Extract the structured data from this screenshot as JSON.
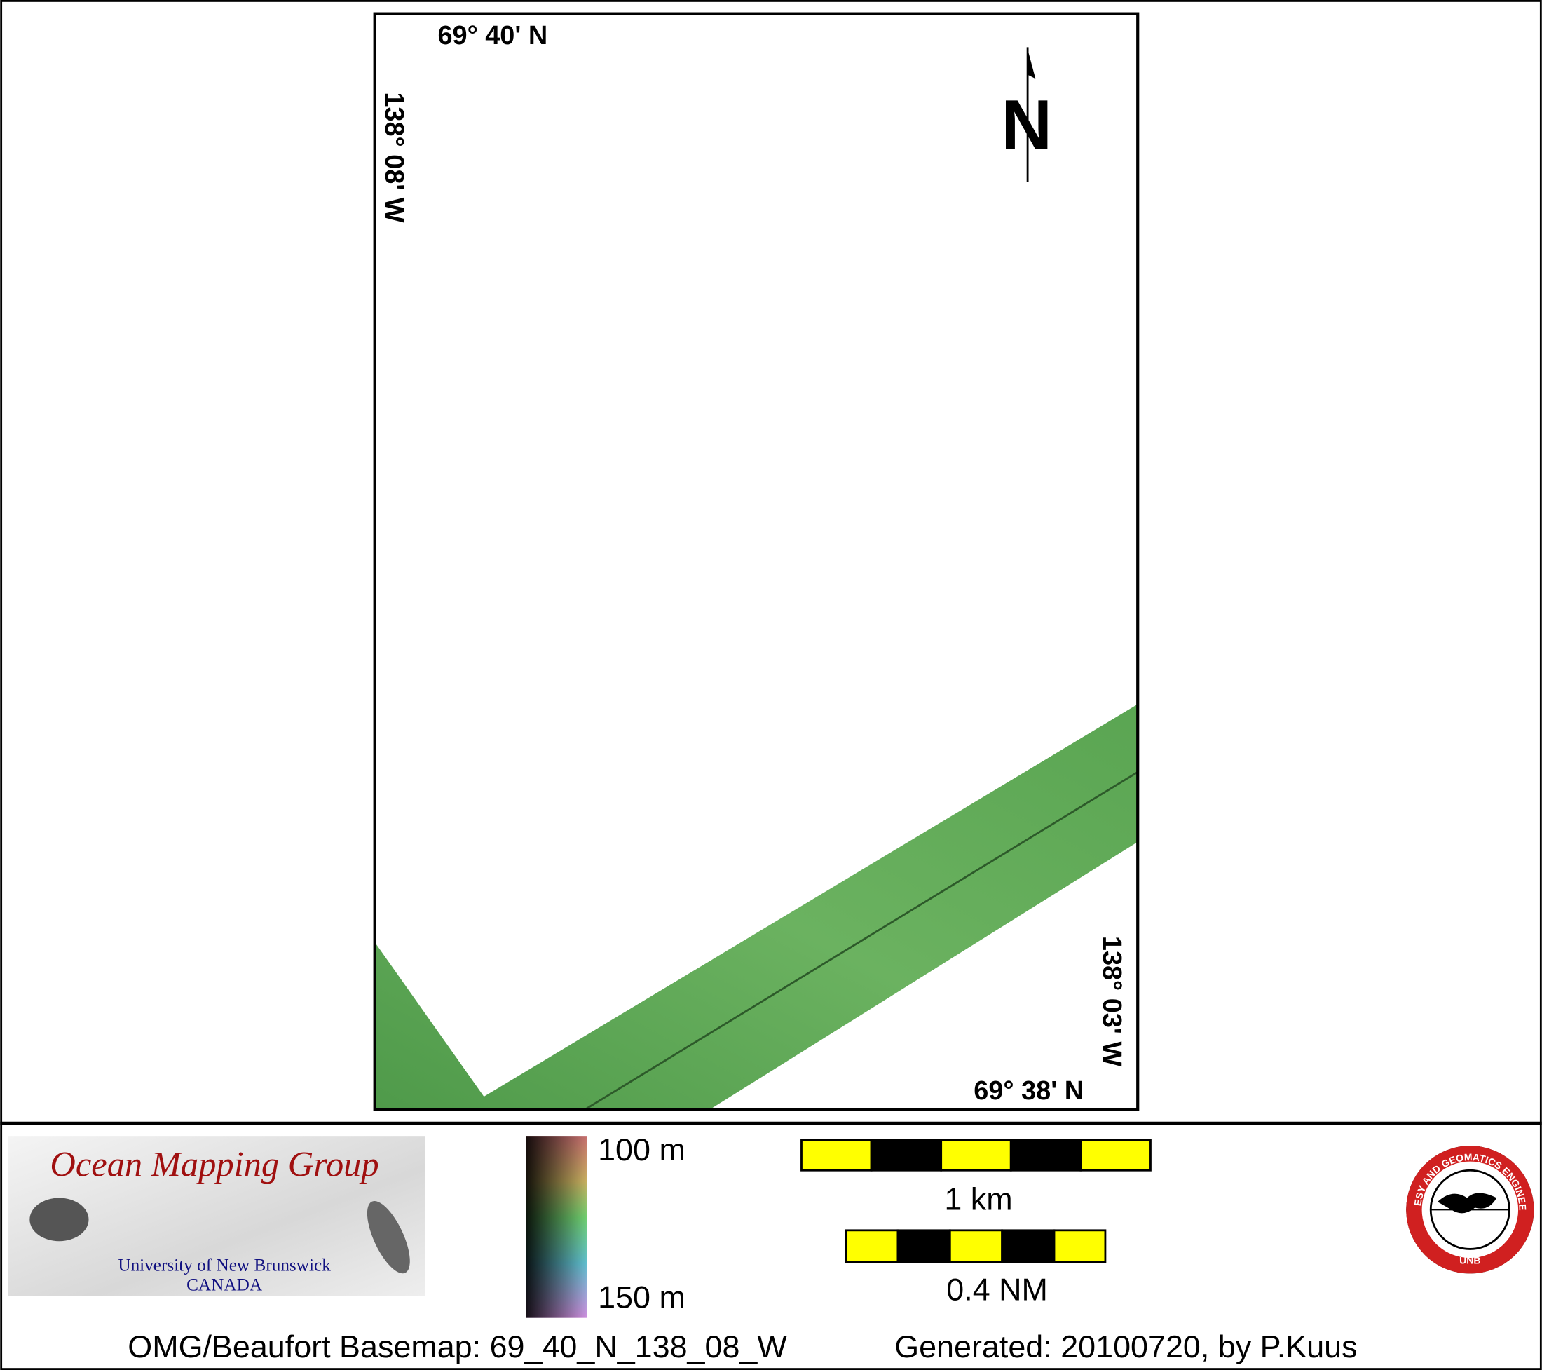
{
  "map": {
    "frame_labels": {
      "top_lat": "69° 40' N",
      "left_lon": "138° 08' W",
      "right_lon": "138° 03' W",
      "bottom_lat": "69° 38' N"
    },
    "north_arrow": "N"
  },
  "legend": {
    "logo": {
      "title": "Ocean Mapping Group",
      "university": "University of New Brunswick",
      "country": "CANADA"
    },
    "depth_scale": {
      "top": "100 m",
      "bottom": "150 m"
    },
    "scale_bars": [
      "1 km",
      "0.4 NM"
    ],
    "seal": {
      "ring": "GEODESY AND GEOMATICS ENGINEERING",
      "bottom": "UNB"
    }
  },
  "footer": {
    "basemap": "OMG/Beaufort Basemap: 69_40_N_138_08_W",
    "generated": "Generated: 20100720, by P.Kuus"
  }
}
